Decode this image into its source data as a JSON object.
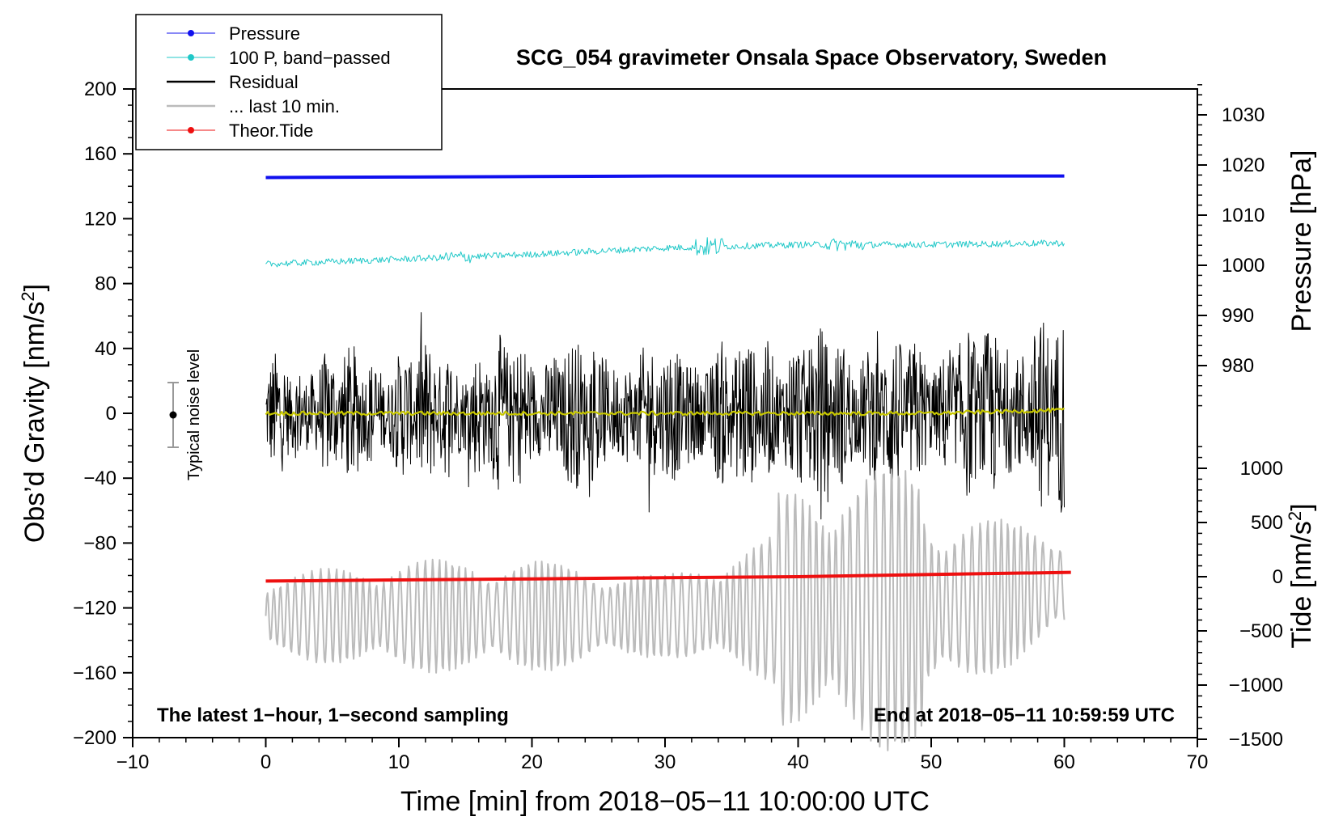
{
  "chart_data": {
    "type": "line",
    "title": "SCG_054 gravimeter Onsala Space Observatory, Sweden",
    "xlabel": "Time [min] from 2018−05−11 10:00:00 UTC",
    "ylabel_base": "Obs’d Gravity [nm/s",
    "ylabel_sup": "2",
    "ylabel_end": "]",
    "x_range": [
      -10,
      70
    ],
    "y_range": [
      -200,
      200
    ],
    "x_ticks": [
      -10,
      0,
      10,
      20,
      30,
      40,
      50,
      60,
      70
    ],
    "x_tick_labels": [
      "−10",
      "0",
      "10",
      "20",
      "30",
      "40",
      "50",
      "60",
      "70"
    ],
    "y_ticks": [
      200,
      160,
      120,
      80,
      40,
      0,
      -40,
      -80,
      -120,
      -160,
      -200
    ],
    "y_tick_labels": [
      "200",
      "160",
      "120",
      "80",
      "40",
      "0",
      "−40",
      "−80",
      "−120",
      "−160",
      "−200"
    ],
    "pressure_axis": {
      "label": "Pressure [hPa]",
      "ticks": [
        1030,
        1020,
        1010,
        1000,
        990,
        980
      ],
      "tick_labels": [
        "1030",
        "1020",
        "1010",
        "1000",
        "990",
        "980"
      ]
    },
    "tide_axis": {
      "label_base": "Tide [nm/s",
      "label_sup": "2",
      "label_end": "]",
      "ticks": [
        1000,
        500,
        0,
        -500,
        -1000,
        -1500
      ],
      "tick_labels": [
        "1000",
        "500",
        "0",
        "−500",
        "−1000",
        "−1500"
      ]
    },
    "legend": [
      {
        "label": "Pressure",
        "color": "#1010ee",
        "marker": true
      },
      {
        "label": "100 P, band−passed",
        "color": "#20c8c8",
        "marker": true
      },
      {
        "label": "Residual",
        "color": "#000000",
        "marker": false
      },
      {
        "label": "... last 10 min.",
        "color": "#bbbbbb",
        "marker": false
      },
      {
        "label": "Theor.Tide",
        "color": "#ee1010",
        "marker": true
      }
    ],
    "series": [
      {
        "name": "Pressure",
        "axis": "pressure",
        "color": "#1010ee",
        "x": [
          0,
          10,
          20,
          30,
          40,
          50,
          60
        ],
        "values": [
          1017.5,
          1017.6,
          1017.7,
          1017.8,
          1017.8,
          1017.8,
          1017.8
        ]
      },
      {
        "name": "100 P, band-passed",
        "axis": "gravity",
        "color": "#20c8c8",
        "x": [
          0,
          10,
          20,
          30,
          40,
          50,
          60
        ],
        "values": [
          92,
          95,
          98,
          102,
          104,
          104,
          105
        ]
      },
      {
        "name": "Residual",
        "axis": "gravity",
        "color": "#000000",
        "x": [
          0,
          10,
          20,
          30,
          40,
          50,
          60
        ],
        "envelope": [
          40,
          45,
          50,
          45,
          55,
          50,
          65
        ]
      },
      {
        "name": "... last 10 min.",
        "axis": "gravity",
        "color": "#bbbbbb",
        "x": [
          0,
          10,
          20,
          30,
          40,
          50,
          60
        ],
        "envelope_lower": [
          -150,
          -160,
          -160,
          -150,
          -170,
          -180,
          -140
        ],
        "envelope_upper": [
          -100,
          -90,
          -90,
          -100,
          -70,
          -60,
          -70
        ]
      },
      {
        "name": "Smoothed residual",
        "axis": "gravity",
        "color": "#c8c800",
        "x": [
          0,
          10,
          20,
          30,
          40,
          50,
          60
        ],
        "values": [
          0,
          0,
          0,
          0,
          0,
          0,
          2
        ]
      },
      {
        "name": "Theor.Tide",
        "axis": "tide",
        "color": "#ee1010",
        "x": [
          0,
          10,
          20,
          30,
          40,
          50,
          60.5
        ],
        "values": [
          -40,
          -30,
          -20,
          -10,
          0,
          20,
          40
        ]
      }
    ],
    "noise_indicator": {
      "label": "Typical noise level",
      "center": 0,
      "range": [
        -20,
        20
      ]
    },
    "annotation_left": "The latest 1−hour, 1−second sampling",
    "annotation_right": "End at 2018−05−11 10:59:59 UTC"
  },
  "colors": {
    "pressure": "#1010ee",
    "bandpassed": "#20c8c8",
    "residual": "#000000",
    "last10": "#bbbbbb",
    "smoothed": "#c8c800",
    "tide": "#ee1010"
  }
}
